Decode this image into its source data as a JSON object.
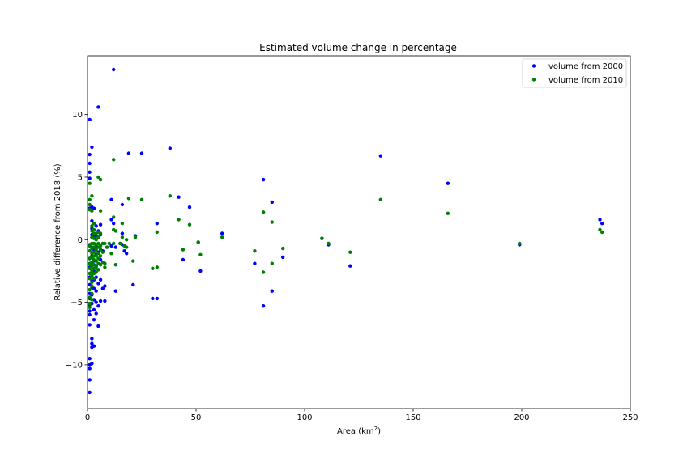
{
  "chart_data": {
    "type": "scatter",
    "title": "Estimated volume change in percentage",
    "xlabel": "Area (km",
    "xlabel_sup": "2",
    "xlabel_tail": ")",
    "ylabel": "Relative difference from 2018 (%)",
    "xlim": [
      0,
      250
    ],
    "ylim": [
      -13.5,
      14.7
    ],
    "xticks": [
      0,
      50,
      100,
      150,
      200,
      250
    ],
    "yticks": [
      -10,
      -5,
      0,
      5,
      10
    ],
    "grid": false,
    "legend": "top-right",
    "series": [
      {
        "name": "volume from 2000",
        "color": "#0000ff",
        "points": [
          [
            1,
            9.6
          ],
          [
            1,
            6.8
          ],
          [
            1,
            6.1
          ],
          [
            1,
            5.4
          ],
          [
            1,
            4.9
          ],
          [
            1,
            2.5
          ],
          [
            1,
            -0.4
          ],
          [
            1,
            -1.5
          ],
          [
            1,
            -2.2
          ],
          [
            1,
            -3.0
          ],
          [
            1,
            -3.6
          ],
          [
            1,
            -4.3
          ],
          [
            1,
            -4.7
          ],
          [
            1,
            -5.2
          ],
          [
            1,
            -5.7
          ],
          [
            1,
            -6.0
          ],
          [
            1,
            -6.8
          ],
          [
            1,
            -9.5
          ],
          [
            1,
            -10.0
          ],
          [
            1,
            -10.3
          ],
          [
            1,
            -11.2
          ],
          [
            1,
            -12.2
          ],
          [
            2,
            7.4
          ],
          [
            2,
            2.6
          ],
          [
            2,
            1.5
          ],
          [
            2,
            0.9
          ],
          [
            2,
            0.4
          ],
          [
            2,
            -0.6
          ],
          [
            2,
            -1.3
          ],
          [
            2,
            -2.0
          ],
          [
            2,
            -2.6
          ],
          [
            2,
            -3.3
          ],
          [
            2,
            -3.8
          ],
          [
            2,
            -4.4
          ],
          [
            2,
            -5.1
          ],
          [
            2,
            -7.9
          ],
          [
            2,
            -8.3
          ],
          [
            2,
            -8.6
          ],
          [
            2,
            -9.9
          ],
          [
            3,
            2.5
          ],
          [
            3,
            1.3
          ],
          [
            3,
            0.2
          ],
          [
            3,
            -0.8
          ],
          [
            3,
            -1.7
          ],
          [
            3,
            -2.5
          ],
          [
            3,
            -3.2
          ],
          [
            3,
            -3.9
          ],
          [
            3,
            -4.8
          ],
          [
            3,
            -5.6
          ],
          [
            3,
            -6.4
          ],
          [
            3,
            -8.5
          ],
          [
            4,
            1.1
          ],
          [
            4,
            0.3
          ],
          [
            4,
            -0.5
          ],
          [
            4,
            -1.2
          ],
          [
            4,
            -2.1
          ],
          [
            4,
            -3.0
          ],
          [
            4,
            -4.1
          ],
          [
            4,
            -5.0
          ],
          [
            4,
            -5.9
          ],
          [
            5,
            10.6
          ],
          [
            5,
            0.7
          ],
          [
            5,
            -1.0
          ],
          [
            5,
            -2.4
          ],
          [
            5,
            -3.5
          ],
          [
            5,
            -5.3
          ],
          [
            5,
            -6.9
          ],
          [
            6,
            1.2
          ],
          [
            6,
            0.4
          ],
          [
            6,
            -1.6
          ],
          [
            6,
            -3.2
          ],
          [
            6,
            -4.9
          ],
          [
            7,
            -0.9
          ],
          [
            7,
            -3.9
          ],
          [
            8,
            -3.7
          ],
          [
            8,
            -4.9
          ],
          [
            9,
            -0.6
          ],
          [
            11,
            3.2
          ],
          [
            11,
            1.6
          ],
          [
            11,
            -0.5
          ],
          [
            12,
            13.6
          ],
          [
            12,
            1.3
          ],
          [
            13,
            -4.1
          ],
          [
            13,
            -0.6
          ],
          [
            16,
            2.8
          ],
          [
            16,
            0.5
          ],
          [
            16,
            -0.4
          ],
          [
            17,
            -0.9
          ],
          [
            18,
            -1.1
          ],
          [
            19,
            6.9
          ],
          [
            21,
            -3.6
          ],
          [
            22,
            0.3
          ],
          [
            25,
            6.9
          ],
          [
            30,
            -4.7
          ],
          [
            32,
            1.3
          ],
          [
            32,
            -4.7
          ],
          [
            38,
            7.3
          ],
          [
            42,
            3.4
          ],
          [
            44,
            -1.6
          ],
          [
            47,
            2.6
          ],
          [
            51,
            -0.2
          ],
          [
            52,
            -2.5
          ],
          [
            62,
            0.5
          ],
          [
            77,
            -1.9
          ],
          [
            81,
            4.8
          ],
          [
            81,
            -5.3
          ],
          [
            85,
            3.0
          ],
          [
            85,
            -4.1
          ],
          [
            90,
            -1.4
          ],
          [
            108,
            0.1
          ],
          [
            111,
            -0.4
          ],
          [
            121,
            -2.1
          ],
          [
            135,
            6.7
          ],
          [
            166,
            4.5
          ],
          [
            199,
            -0.4
          ],
          [
            236,
            1.6
          ],
          [
            237,
            1.3
          ]
        ]
      },
      {
        "name": "volume from 2010",
        "color": "#008000",
        "points": [
          [
            1,
            4.5
          ],
          [
            1,
            3.2
          ],
          [
            1,
            2.8
          ],
          [
            1,
            2.4
          ],
          [
            1,
            -0.5
          ],
          [
            1,
            -0.9
          ],
          [
            1,
            -1.5
          ],
          [
            1,
            -1.9
          ],
          [
            1,
            -2.3
          ],
          [
            1,
            -2.7
          ],
          [
            1,
            -3.1
          ],
          [
            1,
            -4.0
          ],
          [
            1,
            -4.6
          ],
          [
            1,
            -5.1
          ],
          [
            1,
            -5.4
          ],
          [
            2,
            3.5
          ],
          [
            2,
            2.3
          ],
          [
            2,
            1.1
          ],
          [
            2,
            0.7
          ],
          [
            2,
            0.2
          ],
          [
            2,
            -0.3
          ],
          [
            2,
            -0.7
          ],
          [
            2,
            -1.1
          ],
          [
            2,
            -1.4
          ],
          [
            2,
            -1.8
          ],
          [
            2,
            -2.1
          ],
          [
            2,
            -2.5
          ],
          [
            2,
            -2.9
          ],
          [
            2,
            -3.4
          ],
          [
            2,
            -3.7
          ],
          [
            2,
            -4.3
          ],
          [
            2,
            -4.8
          ],
          [
            3,
            1.3
          ],
          [
            3,
            0.8
          ],
          [
            3,
            0.5
          ],
          [
            3,
            0.1
          ],
          [
            3,
            -0.3
          ],
          [
            3,
            -0.6
          ],
          [
            3,
            -1.0
          ],
          [
            3,
            -1.3
          ],
          [
            3,
            -1.6
          ],
          [
            3,
            -2.0
          ],
          [
            3,
            -2.3
          ],
          [
            3,
            -2.7
          ],
          [
            3,
            -3.1
          ],
          [
            4,
            0.5
          ],
          [
            4,
            0.0
          ],
          [
            4,
            -0.4
          ],
          [
            4,
            -0.8
          ],
          [
            4,
            -1.3
          ],
          [
            4,
            -1.7
          ],
          [
            4,
            -2.2
          ],
          [
            4,
            -2.6
          ],
          [
            5,
            5.0
          ],
          [
            5,
            0.6
          ],
          [
            5,
            0.2
          ],
          [
            5,
            -0.3
          ],
          [
            5,
            -0.6
          ],
          [
            5,
            -1.1
          ],
          [
            5,
            -1.5
          ],
          [
            5,
            -1.9
          ],
          [
            5,
            -2.4
          ],
          [
            6,
            4.8
          ],
          [
            6,
            2.3
          ],
          [
            6,
            0.5
          ],
          [
            6,
            -0.5
          ],
          [
            6,
            -0.8
          ],
          [
            6,
            -1.3
          ],
          [
            6,
            -2.0
          ],
          [
            7,
            -0.3
          ],
          [
            7,
            -1.0
          ],
          [
            7,
            -1.8
          ],
          [
            8,
            -0.3
          ],
          [
            8,
            -1.9
          ],
          [
            8,
            -2.2
          ],
          [
            9,
            -0.6
          ],
          [
            10,
            -0.3
          ],
          [
            11,
            -1.1
          ],
          [
            12,
            6.4
          ],
          [
            12,
            1.8
          ],
          [
            12,
            0.8
          ],
          [
            12,
            -0.3
          ],
          [
            13,
            0.7
          ],
          [
            13,
            -2.0
          ],
          [
            15,
            -0.3
          ],
          [
            16,
            1.3
          ],
          [
            16,
            0.2
          ],
          [
            17,
            -0.5
          ],
          [
            18,
            0.0
          ],
          [
            18,
            -0.6
          ],
          [
            19,
            3.3
          ],
          [
            21,
            -1.7
          ],
          [
            22,
            0.2
          ],
          [
            25,
            3.2
          ],
          [
            30,
            -2.3
          ],
          [
            32,
            0.6
          ],
          [
            32,
            -2.2
          ],
          [
            38,
            3.5
          ],
          [
            42,
            1.6
          ],
          [
            44,
            -0.8
          ],
          [
            47,
            1.2
          ],
          [
            51,
            -0.2
          ],
          [
            52,
            -1.2
          ],
          [
            62,
            0.2
          ],
          [
            77,
            -0.9
          ],
          [
            81,
            2.2
          ],
          [
            81,
            -2.6
          ],
          [
            85,
            1.4
          ],
          [
            85,
            -1.9
          ],
          [
            90,
            -0.7
          ],
          [
            108,
            0.1
          ],
          [
            111,
            -0.3
          ],
          [
            121,
            -1.0
          ],
          [
            135,
            3.2
          ],
          [
            166,
            2.1
          ],
          [
            199,
            -0.3
          ],
          [
            236,
            0.8
          ],
          [
            237,
            0.6
          ]
        ]
      }
    ]
  }
}
